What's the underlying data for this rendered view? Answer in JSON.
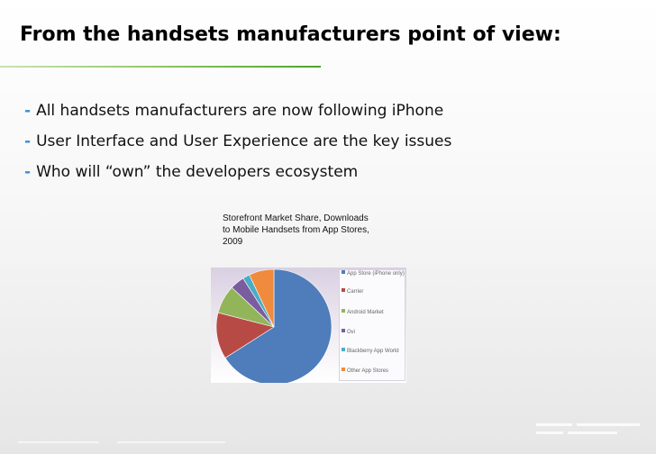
{
  "slide": {
    "title": "From the handsets manufacturers point of view:",
    "bullet_marker": "-",
    "bullets": [
      "All handsets manufacturers are now following iPhone",
      "User Interface and User Experience are the key issues",
      "Who will “own” the developers ecosystem"
    ]
  },
  "colors": {
    "accent_green": "#4ca22e",
    "bullet_blue": "#3a8fd6"
  },
  "chart_data": {
    "type": "pie",
    "title": "Storefront Market Share, Downloads to Mobile Handsets from App Stores, 2009",
    "title_lines": [
      "Storefront Market Share, Downloads",
      "to Mobile Handsets from App Stores,",
      "2009"
    ],
    "legend_position": "right",
    "categories": [
      "App Store (iPhone only)",
      "Carrier",
      "Android Market",
      "Ovi",
      "Blackberry App World",
      "Other App Stores"
    ],
    "values": [
      66,
      13,
      8,
      4,
      2,
      7
    ],
    "unit": "%",
    "colors": [
      "#4f7cba",
      "#b84a46",
      "#93b55a",
      "#7a5d9e",
      "#4bacc6",
      "#f08a3c"
    ]
  }
}
